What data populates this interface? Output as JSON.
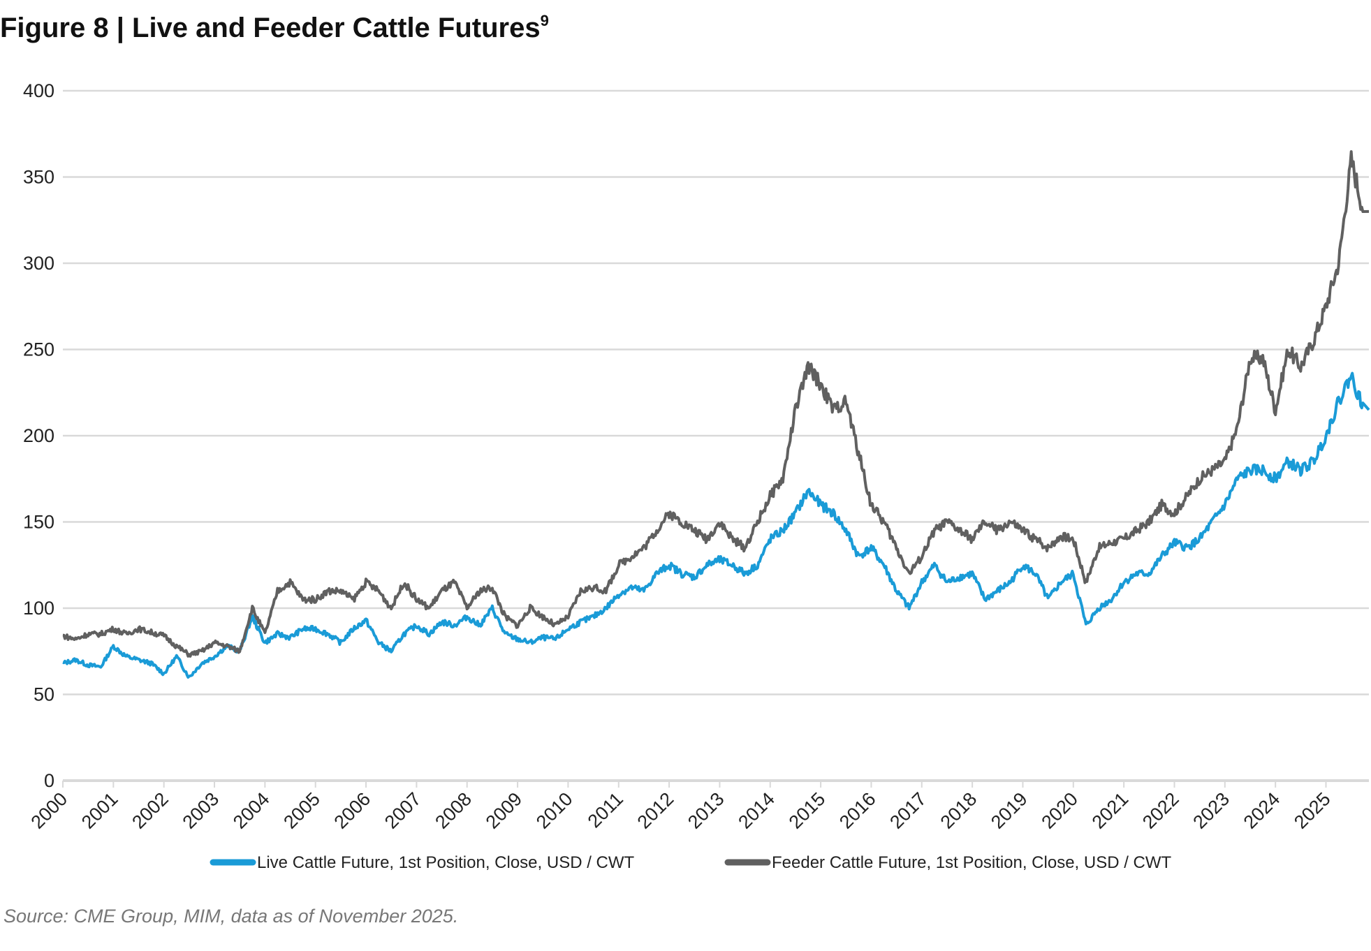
{
  "chart_data": {
    "type": "line",
    "title": "Figure 8  |  Live and Feeder Cattle Futures",
    "title_superscript": "9",
    "xlabel": "",
    "ylabel": "",
    "ylim": [
      0,
      400
    ],
    "yticks": [
      0,
      50,
      100,
      150,
      200,
      250,
      300,
      350,
      400
    ],
    "xlim": [
      2000,
      2025.85
    ],
    "xticks": [
      "2000",
      "2001",
      "2002",
      "2003",
      "2004",
      "2005",
      "2006",
      "2007",
      "2008",
      "2009",
      "2010",
      "2011",
      "2012",
      "2013",
      "2014",
      "2015",
      "2016",
      "2017",
      "2018",
      "2019",
      "2020",
      "2021",
      "2022",
      "2023",
      "2024",
      "2025"
    ],
    "grid": true,
    "legend_position": "bottom",
    "x_step": "quarterly, starting 2000 Q1",
    "series": [
      {
        "name": "Live Cattle Future, 1st Position, Close, USD / CWT",
        "color": "#1a9bd7",
        "values": [
          68,
          70,
          67,
          66,
          78,
          72,
          70,
          68,
          62,
          72,
          60,
          68,
          72,
          78,
          75,
          95,
          80,
          85,
          83,
          88,
          88,
          85,
          80,
          88,
          93,
          80,
          75,
          85,
          90,
          85,
          92,
          90,
          95,
          90,
          100,
          85,
          82,
          80,
          83,
          82,
          88,
          92,
          95,
          100,
          108,
          112,
          110,
          120,
          125,
          120,
          118,
          125,
          128,
          125,
          120,
          125,
          140,
          145,
          155,
          168,
          160,
          155,
          145,
          130,
          135,
          125,
          110,
          100,
          115,
          125,
          115,
          118,
          120,
          105,
          110,
          115,
          125,
          120,
          105,
          115,
          120,
          90,
          100,
          105,
          115,
          120,
          120,
          130,
          138,
          135,
          140,
          150,
          160,
          175,
          180,
          180,
          175,
          185,
          180,
          185,
          200,
          220,
          235,
          215
        ]
      },
      {
        "name": "Feeder Cattle Future, 1st Position, Close, USD / CWT",
        "color": "#606060",
        "values": [
          84,
          82,
          85,
          85,
          88,
          85,
          88,
          86,
          84,
          78,
          73,
          75,
          80,
          78,
          75,
          100,
          85,
          110,
          115,
          105,
          105,
          110,
          110,
          105,
          115,
          110,
          100,
          115,
          105,
          100,
          110,
          115,
          100,
          110,
          112,
          95,
          90,
          100,
          95,
          90,
          95,
          110,
          112,
          110,
          125,
          130,
          135,
          145,
          155,
          150,
          145,
          140,
          150,
          140,
          135,
          150,
          165,
          175,
          215,
          240,
          230,
          215,
          220,
          190,
          160,
          150,
          135,
          120,
          130,
          145,
          150,
          145,
          140,
          150,
          145,
          150,
          145,
          140,
          135,
          142,
          140,
          115,
          135,
          138,
          140,
          145,
          150,
          160,
          155,
          165,
          175,
          180,
          185,
          205,
          245,
          245,
          215,
          250,
          240,
          255,
          275,
          300,
          360,
          330
        ]
      }
    ]
  },
  "source": "Source: CME Group, MIM, data as of November 2025."
}
